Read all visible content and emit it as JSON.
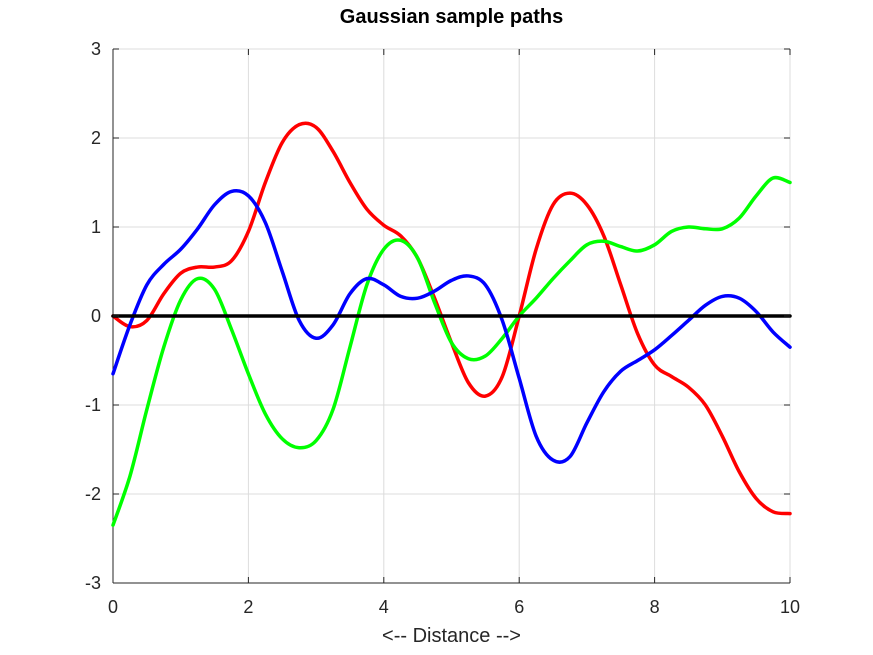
{
  "chart_data": {
    "type": "line",
    "title": "Gaussian sample paths",
    "xlabel": "<-- Distance -->",
    "ylabel": "",
    "xlim": [
      0,
      10
    ],
    "ylim": [
      -3,
      3
    ],
    "xticks": [
      "0",
      "2",
      "4",
      "6",
      "8",
      "10"
    ],
    "yticks": [
      "-3",
      "-2",
      "-1",
      "0",
      "1",
      "2",
      "3"
    ],
    "grid": true,
    "legend": "none",
    "series": [
      {
        "color": "#ff0000",
        "x": [
          0,
          0.25,
          0.5,
          0.75,
          1,
          1.25,
          1.5,
          1.75,
          2,
          2.25,
          2.5,
          2.75,
          3,
          3.25,
          3.5,
          3.75,
          4,
          4.25,
          4.5,
          4.75,
          5,
          5.25,
          5.5,
          5.75,
          6,
          6.25,
          6.5,
          6.75,
          7,
          7.25,
          7.5,
          7.75,
          8,
          8.25,
          8.5,
          8.75,
          9,
          9.25,
          9.5,
          9.75,
          10
        ],
        "y": [
          0,
          -0.12,
          -0.05,
          0.25,
          0.48,
          0.55,
          0.55,
          0.62,
          0.95,
          1.5,
          1.95,
          2.15,
          2.12,
          1.85,
          1.5,
          1.2,
          1.02,
          0.9,
          0.65,
          0.2,
          -0.3,
          -0.75,
          -0.9,
          -0.68,
          0,
          0.75,
          1.25,
          1.38,
          1.25,
          0.9,
          0.35,
          -0.2,
          -0.55,
          -0.68,
          -0.8,
          -1.0,
          -1.35,
          -1.75,
          -2.05,
          -2.2,
          -2.22
        ]
      },
      {
        "color": "#00ff00",
        "x": [
          0,
          0.25,
          0.5,
          0.75,
          1,
          1.25,
          1.5,
          1.75,
          2,
          2.25,
          2.5,
          2.75,
          3,
          3.25,
          3.5,
          3.75,
          4,
          4.25,
          4.5,
          4.75,
          5,
          5.25,
          5.5,
          5.75,
          6,
          6.25,
          6.5,
          6.75,
          7,
          7.25,
          7.5,
          7.75,
          8,
          8.25,
          8.5,
          8.75,
          9,
          9.25,
          9.5,
          9.75,
          10
        ],
        "y": [
          -2.35,
          -1.8,
          -1.05,
          -0.35,
          0.18,
          0.42,
          0.3,
          -0.15,
          -0.65,
          -1.1,
          -1.38,
          -1.48,
          -1.4,
          -1.05,
          -0.35,
          0.35,
          0.75,
          0.85,
          0.65,
          0.15,
          -0.3,
          -0.48,
          -0.45,
          -0.25,
          0,
          0.2,
          0.42,
          0.62,
          0.8,
          0.84,
          0.78,
          0.73,
          0.8,
          0.95,
          1.0,
          0.98,
          0.98,
          1.1,
          1.35,
          1.55,
          1.5
        ]
      },
      {
        "color": "#0000ff",
        "x": [
          0,
          0.25,
          0.5,
          0.75,
          1,
          1.25,
          1.5,
          1.75,
          2,
          2.25,
          2.5,
          2.75,
          3,
          3.25,
          3.5,
          3.75,
          4,
          4.25,
          4.5,
          4.75,
          5,
          5.25,
          5.5,
          5.75,
          6,
          6.25,
          6.5,
          6.75,
          7,
          7.25,
          7.5,
          7.75,
          8,
          8.25,
          8.5,
          8.75,
          9,
          9.25,
          9.5,
          9.75,
          10
        ],
        "y": [
          -0.65,
          -0.1,
          0.35,
          0.58,
          0.75,
          0.98,
          1.25,
          1.4,
          1.35,
          1.05,
          0.5,
          -0.05,
          -0.25,
          -0.1,
          0.25,
          0.42,
          0.35,
          0.22,
          0.2,
          0.28,
          0.4,
          0.45,
          0.35,
          -0.05,
          -0.7,
          -1.35,
          -1.62,
          -1.58,
          -1.2,
          -0.85,
          -0.62,
          -0.5,
          -0.38,
          -0.22,
          -0.05,
          0.12,
          0.22,
          0.2,
          0.05,
          -0.18,
          -0.35
        ]
      },
      {
        "color": "#000000",
        "x": [
          0,
          10
        ],
        "y": [
          0,
          0
        ]
      }
    ]
  }
}
